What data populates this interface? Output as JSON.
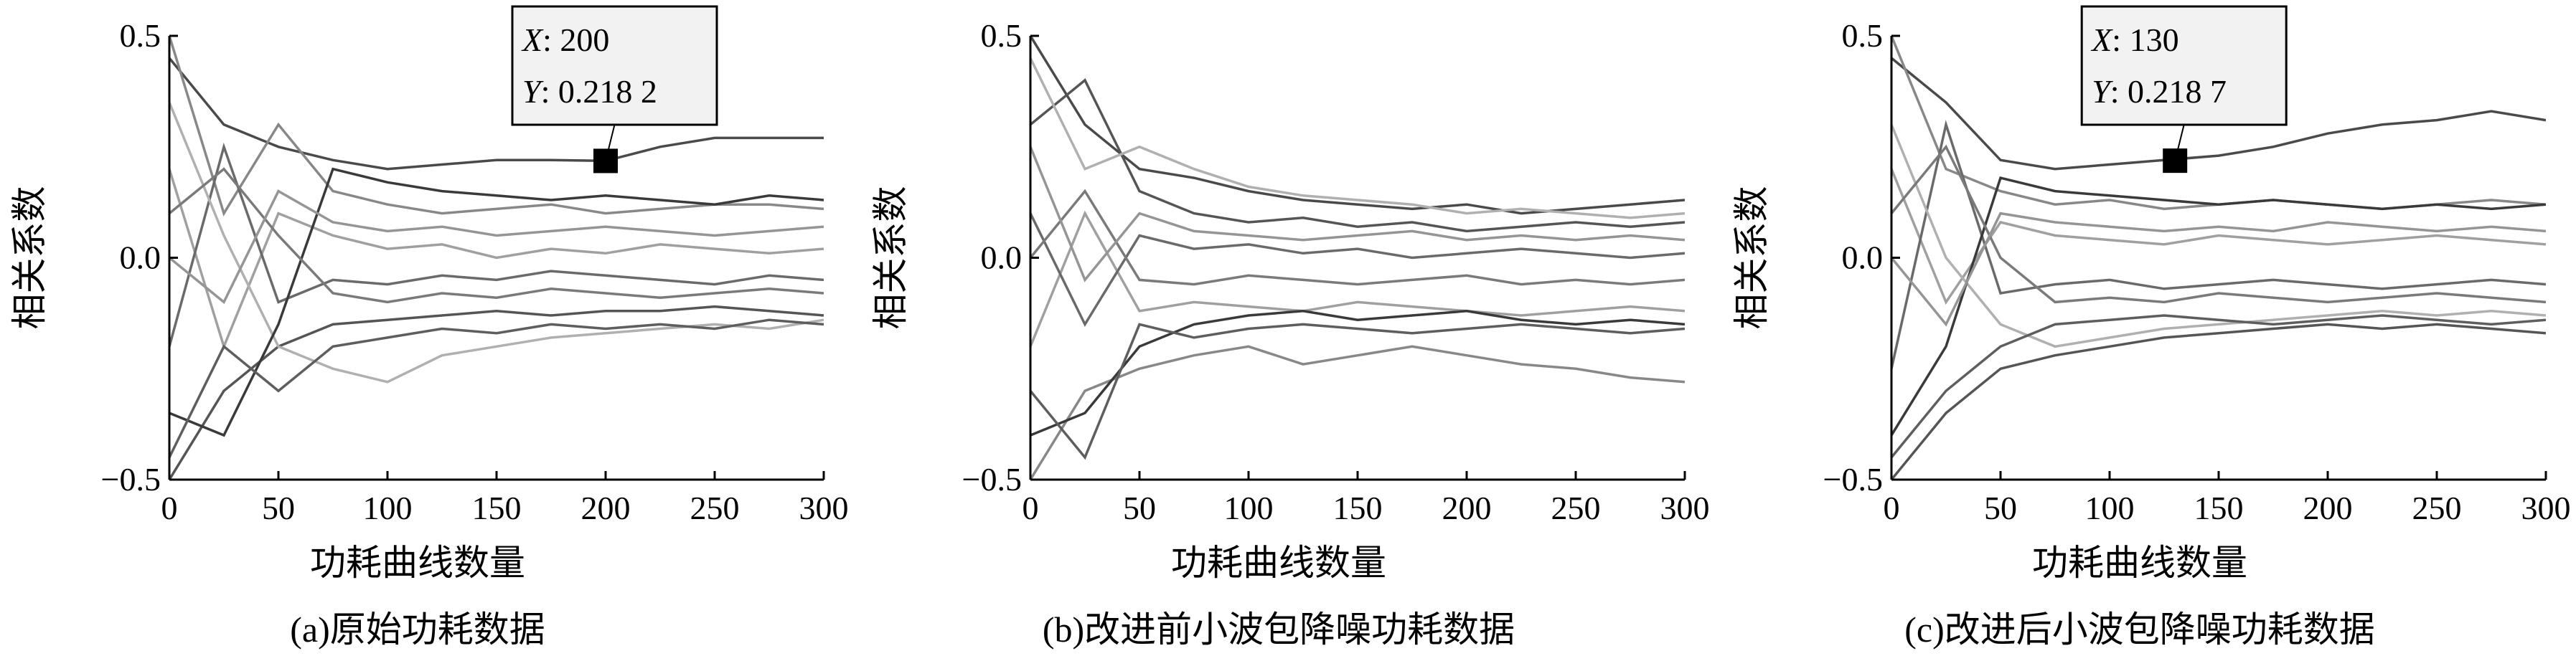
{
  "chart_data": [
    {
      "type": "line",
      "title": "(a)原始功耗数据",
      "x_label": "功耗曲线数量",
      "y_label": "相关系数",
      "x": [
        0,
        25,
        50,
        75,
        100,
        125,
        150,
        175,
        200,
        225,
        250,
        275,
        300
      ],
      "xlim": [
        0,
        300
      ],
      "xticks": [
        0,
        50,
        100,
        150,
        200,
        250,
        300
      ],
      "ylim": [
        -0.5,
        0.5
      ],
      "yticks": [
        {
          "value": -0.5,
          "label": "−0.5"
        },
        {
          "value": 0,
          "label": "0.0"
        },
        {
          "value": 0.5,
          "label": "0.5"
        }
      ],
      "series": [
        {
          "color": "#4a4a4a",
          "values": [
            0.45,
            0.3,
            0.25,
            0.22,
            0.2,
            0.21,
            0.22,
            0.22,
            0.2182,
            0.25,
            0.27,
            0.27,
            0.27
          ]
        },
        {
          "color": "#888888",
          "values": [
            0.5,
            0.1,
            0.3,
            0.15,
            0.12,
            0.1,
            0.11,
            0.12,
            0.1,
            0.11,
            0.12,
            0.12,
            0.11
          ]
        },
        {
          "color": "#555555",
          "values": [
            -0.5,
            -0.3,
            -0.2,
            -0.15,
            -0.14,
            -0.13,
            -0.12,
            -0.13,
            -0.12,
            -0.12,
            -0.11,
            -0.12,
            -0.13
          ]
        },
        {
          "color": "#a0a0a0",
          "values": [
            0.2,
            -0.2,
            0.1,
            0.05,
            0.02,
            0.03,
            0.0,
            0.02,
            0.01,
            0.03,
            0.02,
            0.01,
            0.02
          ]
        },
        {
          "color": "#6a6a6a",
          "values": [
            -0.2,
            0.25,
            -0.1,
            -0.05,
            -0.06,
            -0.04,
            -0.05,
            -0.03,
            -0.04,
            -0.05,
            -0.06,
            -0.04,
            -0.05
          ]
        },
        {
          "color": "#b0b0b0",
          "values": [
            0.35,
            0.05,
            -0.2,
            -0.25,
            -0.28,
            -0.22,
            -0.2,
            -0.18,
            -0.17,
            -0.16,
            -0.15,
            -0.16,
            -0.14
          ]
        },
        {
          "color": "#3a3a3a",
          "values": [
            -0.35,
            -0.4,
            -0.15,
            0.2,
            0.17,
            0.15,
            0.14,
            0.13,
            0.14,
            0.13,
            0.12,
            0.14,
            0.13
          ]
        },
        {
          "color": "#7a7a7a",
          "values": [
            0.1,
            0.2,
            0.05,
            -0.08,
            -0.1,
            -0.08,
            -0.09,
            -0.07,
            -0.08,
            -0.09,
            -0.08,
            -0.07,
            -0.08
          ]
        },
        {
          "color": "#959595",
          "values": [
            0.0,
            -0.1,
            0.15,
            0.08,
            0.06,
            0.07,
            0.05,
            0.06,
            0.07,
            0.06,
            0.05,
            0.06,
            0.07
          ]
        },
        {
          "color": "#5e5e5e",
          "values": [
            -0.45,
            -0.2,
            -0.3,
            -0.2,
            -0.18,
            -0.16,
            -0.17,
            -0.15,
            -0.16,
            -0.15,
            -0.16,
            -0.14,
            -0.15
          ]
        }
      ],
      "datatip": {
        "x": {
          "name": "X",
          "value": 200,
          "label": ": 200"
        },
        "y": {
          "name": "Y",
          "value": 0.2182,
          "label": ": 0.218 2"
        }
      }
    },
    {
      "type": "line",
      "title": "(b)改进前小波包降噪功耗数据",
      "x_label": "功耗曲线数量",
      "y_label": "相关系数",
      "x": [
        0,
        25,
        50,
        75,
        100,
        125,
        150,
        175,
        200,
        225,
        250,
        275,
        300
      ],
      "xlim": [
        0,
        300
      ],
      "xticks": [
        0,
        50,
        100,
        150,
        200,
        250,
        300
      ],
      "ylim": [
        -0.5,
        0.5
      ],
      "yticks": [
        {
          "value": -0.5,
          "label": "−0.5"
        },
        {
          "value": 0,
          "label": "0.0"
        },
        {
          "value": 0.5,
          "label": "0.5"
        }
      ],
      "series": [
        {
          "color": "#4a4a4a",
          "values": [
            0.5,
            0.3,
            0.2,
            0.18,
            0.15,
            0.13,
            0.12,
            0.11,
            0.12,
            0.1,
            0.11,
            0.12,
            0.13
          ]
        },
        {
          "color": "#888888",
          "values": [
            -0.5,
            -0.3,
            -0.25,
            -0.22,
            -0.2,
            -0.24,
            -0.22,
            -0.2,
            -0.22,
            -0.24,
            -0.25,
            -0.27,
            -0.28
          ]
        },
        {
          "color": "#555555",
          "values": [
            0.3,
            0.4,
            0.15,
            0.1,
            0.08,
            0.09,
            0.07,
            0.08,
            0.06,
            0.07,
            0.08,
            0.07,
            0.08
          ]
        },
        {
          "color": "#a0a0a0",
          "values": [
            -0.2,
            0.1,
            -0.12,
            -0.1,
            -0.11,
            -0.12,
            -0.1,
            -0.11,
            -0.12,
            -0.13,
            -0.12,
            -0.11,
            -0.12
          ]
        },
        {
          "color": "#6a6a6a",
          "values": [
            0.1,
            -0.15,
            0.05,
            0.02,
            0.03,
            0.01,
            0.02,
            0.0,
            0.01,
            0.02,
            0.01,
            0.0,
            0.01
          ]
        },
        {
          "color": "#b0b0b0",
          "values": [
            0.45,
            0.2,
            0.25,
            0.2,
            0.16,
            0.14,
            0.13,
            0.12,
            0.1,
            0.11,
            0.1,
            0.09,
            0.1
          ]
        },
        {
          "color": "#3a3a3a",
          "values": [
            -0.4,
            -0.35,
            -0.2,
            -0.15,
            -0.13,
            -0.12,
            -0.14,
            -0.13,
            -0.12,
            -0.14,
            -0.15,
            -0.14,
            -0.15
          ]
        },
        {
          "color": "#7a7a7a",
          "values": [
            0.0,
            0.15,
            -0.05,
            -0.06,
            -0.04,
            -0.05,
            -0.06,
            -0.05,
            -0.04,
            -0.06,
            -0.05,
            -0.06,
            -0.05
          ]
        },
        {
          "color": "#959595",
          "values": [
            0.25,
            -0.05,
            0.1,
            0.06,
            0.05,
            0.04,
            0.05,
            0.06,
            0.04,
            0.05,
            0.04,
            0.05,
            0.04
          ]
        },
        {
          "color": "#5e5e5e",
          "values": [
            -0.3,
            -0.45,
            -0.15,
            -0.18,
            -0.16,
            -0.15,
            -0.16,
            -0.17,
            -0.16,
            -0.15,
            -0.16,
            -0.17,
            -0.16
          ]
        }
      ]
    },
    {
      "type": "line",
      "title": "(c)改进后小波包降噪功耗数据",
      "x_label": "功耗曲线数量",
      "y_label": "相关系数",
      "x": [
        0,
        25,
        50,
        75,
        100,
        125,
        150,
        175,
        200,
        225,
        250,
        275,
        300
      ],
      "xlim": [
        0,
        300
      ],
      "xticks": [
        0,
        50,
        100,
        150,
        200,
        250,
        300
      ],
      "ylim": [
        -0.5,
        0.5
      ],
      "yticks": [
        {
          "value": -0.5,
          "label": "−0.5"
        },
        {
          "value": 0,
          "label": "0.0"
        },
        {
          "value": 0.5,
          "label": "0.5"
        }
      ],
      "series": [
        {
          "color": "#4a4a4a",
          "values": [
            0.45,
            0.35,
            0.22,
            0.2,
            0.21,
            0.22,
            0.23,
            0.25,
            0.28,
            0.3,
            0.31,
            0.33,
            0.31
          ]
        },
        {
          "color": "#888888",
          "values": [
            0.5,
            0.2,
            0.15,
            0.12,
            0.13,
            0.11,
            0.12,
            0.13,
            0.12,
            0.11,
            0.12,
            0.13,
            0.12
          ]
        },
        {
          "color": "#555555",
          "values": [
            -0.5,
            -0.35,
            -0.25,
            -0.22,
            -0.2,
            -0.18,
            -0.17,
            -0.16,
            -0.15,
            -0.16,
            -0.15,
            -0.16,
            -0.17
          ]
        },
        {
          "color": "#a0a0a0",
          "values": [
            0.2,
            -0.1,
            0.08,
            0.05,
            0.04,
            0.03,
            0.05,
            0.04,
            0.03,
            0.04,
            0.05,
            0.04,
            0.03
          ]
        },
        {
          "color": "#6a6a6a",
          "values": [
            -0.25,
            0.3,
            -0.08,
            -0.06,
            -0.05,
            -0.07,
            -0.06,
            -0.05,
            -0.06,
            -0.07,
            -0.06,
            -0.05,
            -0.06
          ]
        },
        {
          "color": "#b0b0b0",
          "values": [
            0.3,
            0.0,
            -0.15,
            -0.2,
            -0.18,
            -0.16,
            -0.15,
            -0.14,
            -0.13,
            -0.12,
            -0.13,
            -0.12,
            -0.13
          ]
        },
        {
          "color": "#3a3a3a",
          "values": [
            -0.4,
            -0.2,
            0.18,
            0.15,
            0.14,
            0.13,
            0.12,
            0.13,
            0.12,
            0.11,
            0.12,
            0.11,
            0.12
          ]
        },
        {
          "color": "#7a7a7a",
          "values": [
            0.1,
            0.25,
            0.0,
            -0.1,
            -0.09,
            -0.1,
            -0.08,
            -0.09,
            -0.1,
            -0.09,
            -0.08,
            -0.09,
            -0.1
          ]
        },
        {
          "color": "#959595",
          "values": [
            0.0,
            -0.15,
            0.1,
            0.08,
            0.07,
            0.06,
            0.07,
            0.06,
            0.08,
            0.07,
            0.06,
            0.07,
            0.06
          ]
        },
        {
          "color": "#5e5e5e",
          "values": [
            -0.45,
            -0.3,
            -0.2,
            -0.15,
            -0.14,
            -0.13,
            -0.14,
            -0.15,
            -0.14,
            -0.13,
            -0.14,
            -0.15,
            -0.14
          ]
        }
      ],
      "datatip": {
        "x": {
          "name": "X",
          "value": 130,
          "label": ": 130"
        },
        "y": {
          "name": "Y",
          "value": 0.2187,
          "label": ": 0.218 7"
        }
      }
    }
  ]
}
